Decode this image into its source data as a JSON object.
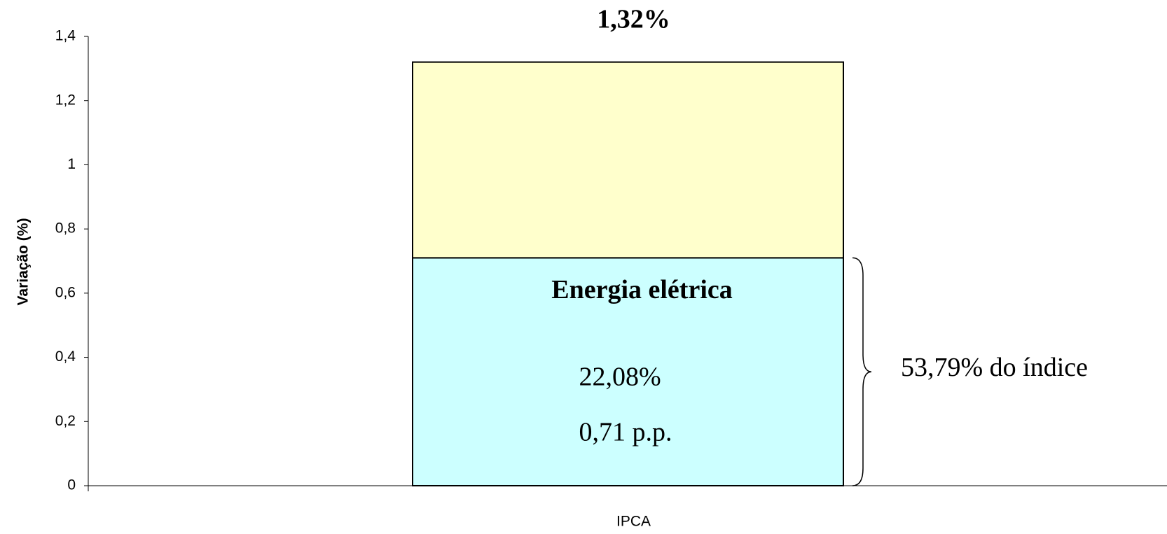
{
  "chart_data": {
    "type": "stacked_bar",
    "total_label": {
      "value": 1.32,
      "label": "1,32%"
    },
    "y_label": "Variação (%)",
    "categories": [
      "IPCA"
    ],
    "series": [
      {
        "name": "Energia elétrica",
        "color": "#ccffff",
        "values": [
          0.71
        ],
        "value_labels": [
          "0,71 p.p."
        ]
      },
      {
        "color": "#ffffcc",
        "values": [
          0.61
        ]
      }
    ],
    "annotations": [
      "22,08%",
      "53,79% do índice"
    ],
    "ylim": [
      0,
      1.4
    ],
    "yticks": [
      0,
      {
        "value": 0.2,
        "label": "0,2"
      },
      {
        "value": 0.4,
        "label": "0,4"
      },
      {
        "value": 0.6,
        "label": "0,6"
      },
      {
        "value": 0.8,
        "label": "0,8"
      },
      1,
      {
        "value": 1.2,
        "label": "1,2"
      },
      {
        "value": 1.4,
        "label": "1,4"
      }
    ],
    "grid": false
  }
}
